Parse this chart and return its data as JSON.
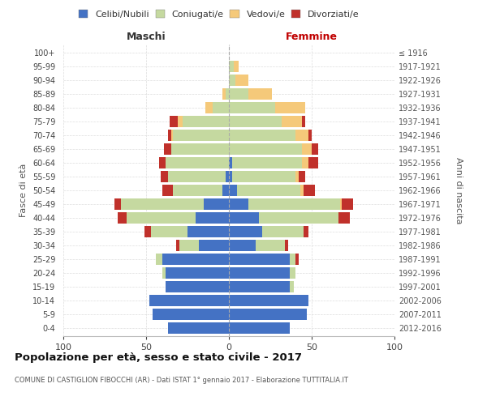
{
  "age_groups": [
    "0-4",
    "5-9",
    "10-14",
    "15-19",
    "20-24",
    "25-29",
    "30-34",
    "35-39",
    "40-44",
    "45-49",
    "50-54",
    "55-59",
    "60-64",
    "65-69",
    "70-74",
    "75-79",
    "80-84",
    "85-89",
    "90-94",
    "95-99",
    "100+"
  ],
  "birth_years": [
    "2012-2016",
    "2007-2011",
    "2002-2006",
    "1997-2001",
    "1992-1996",
    "1987-1991",
    "1982-1986",
    "1977-1981",
    "1972-1976",
    "1967-1971",
    "1962-1966",
    "1957-1961",
    "1952-1956",
    "1947-1951",
    "1942-1946",
    "1937-1941",
    "1932-1936",
    "1927-1931",
    "1922-1926",
    "1917-1921",
    "≤ 1916"
  ],
  "maschi": {
    "celibe": [
      37,
      46,
      48,
      38,
      38,
      40,
      18,
      25,
      20,
      15,
      4,
      2,
      0,
      0,
      0,
      0,
      0,
      0,
      0,
      0,
      0
    ],
    "coniugato": [
      0,
      0,
      0,
      0,
      2,
      4,
      12,
      22,
      42,
      50,
      30,
      35,
      38,
      35,
      34,
      28,
      10,
      2,
      0,
      0,
      0
    ],
    "vedovo": [
      0,
      0,
      0,
      0,
      0,
      0,
      0,
      0,
      0,
      0,
      0,
      0,
      0,
      0,
      1,
      3,
      4,
      2,
      0,
      0,
      0
    ],
    "divorziato": [
      0,
      0,
      0,
      0,
      0,
      0,
      2,
      4,
      5,
      4,
      6,
      4,
      4,
      4,
      2,
      5,
      0,
      0,
      0,
      0,
      0
    ]
  },
  "femmine": {
    "nubile": [
      37,
      47,
      48,
      37,
      37,
      37,
      16,
      20,
      18,
      12,
      5,
      2,
      2,
      0,
      0,
      0,
      0,
      0,
      0,
      0,
      0
    ],
    "coniugata": [
      0,
      0,
      0,
      2,
      3,
      3,
      18,
      25,
      48,
      55,
      38,
      38,
      42,
      44,
      40,
      32,
      28,
      12,
      4,
      3,
      0
    ],
    "vedova": [
      0,
      0,
      0,
      0,
      0,
      0,
      0,
      0,
      0,
      1,
      2,
      2,
      4,
      6,
      8,
      12,
      18,
      14,
      8,
      3,
      0
    ],
    "divorziata": [
      0,
      0,
      0,
      0,
      0,
      2,
      2,
      3,
      7,
      7,
      7,
      4,
      6,
      4,
      2,
      2,
      0,
      0,
      0,
      0,
      0
    ]
  },
  "colors": {
    "celibe": "#4472C4",
    "coniugato": "#C5D9A0",
    "vedovo": "#F5C97A",
    "divorziato": "#C0312B"
  },
  "xlim": 100,
  "title": "Popolazione per età, sesso e stato civile - 2017",
  "subtitle": "COMUNE DI CASTIGLION FIBOCCHI (AR) - Dati ISTAT 1° gennaio 2017 - Elaborazione TUTTITALIA.IT",
  "ylabel_left": "Fasce di età",
  "ylabel_right": "Anni di nascita",
  "maschi_label": "Maschi",
  "femmine_label": "Femmine",
  "legend_labels": [
    "Celibi/Nubili",
    "Coniugati/e",
    "Vedovi/e",
    "Divorziati/e"
  ],
  "bg_color": "#ffffff",
  "grid_color": "#cccccc"
}
